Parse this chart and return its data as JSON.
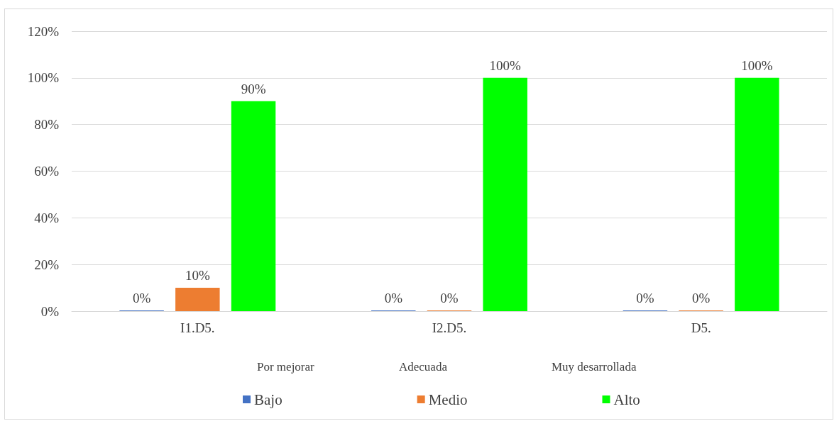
{
  "chart_data": {
    "type": "bar",
    "categories": [
      "I1.D5.",
      "I2.D5.",
      "D5."
    ],
    "series": [
      {
        "name": "Bajo",
        "color": "#4472c4",
        "values": [
          0,
          0,
          0
        ],
        "value_labels": [
          "0%",
          "0%",
          "0%"
        ]
      },
      {
        "name": "Medio",
        "color": "#ed7d31",
        "values": [
          10,
          0,
          0
        ],
        "value_labels": [
          "10%",
          "0%",
          "0%"
        ]
      },
      {
        "name": "Alto",
        "color": "#00ff00",
        "values": [
          90,
          100,
          100
        ],
        "value_labels": [
          "90%",
          "100%",
          "100%"
        ]
      }
    ],
    "ylim": [
      0,
      120
    ],
    "yticks": [
      {
        "value": 0,
        "label": "0%"
      },
      {
        "value": 20,
        "label": "20%"
      },
      {
        "value": 40,
        "label": "40%"
      },
      {
        "value": 60,
        "label": "60%"
      },
      {
        "value": 80,
        "label": "80%"
      },
      {
        "value": 100,
        "label": "100%"
      },
      {
        "value": 120,
        "label": "120%"
      }
    ],
    "grid": "y",
    "legend": "bottom",
    "annotations": [
      "Por mejorar",
      "Adecuada",
      "Muy desarrollada"
    ]
  }
}
